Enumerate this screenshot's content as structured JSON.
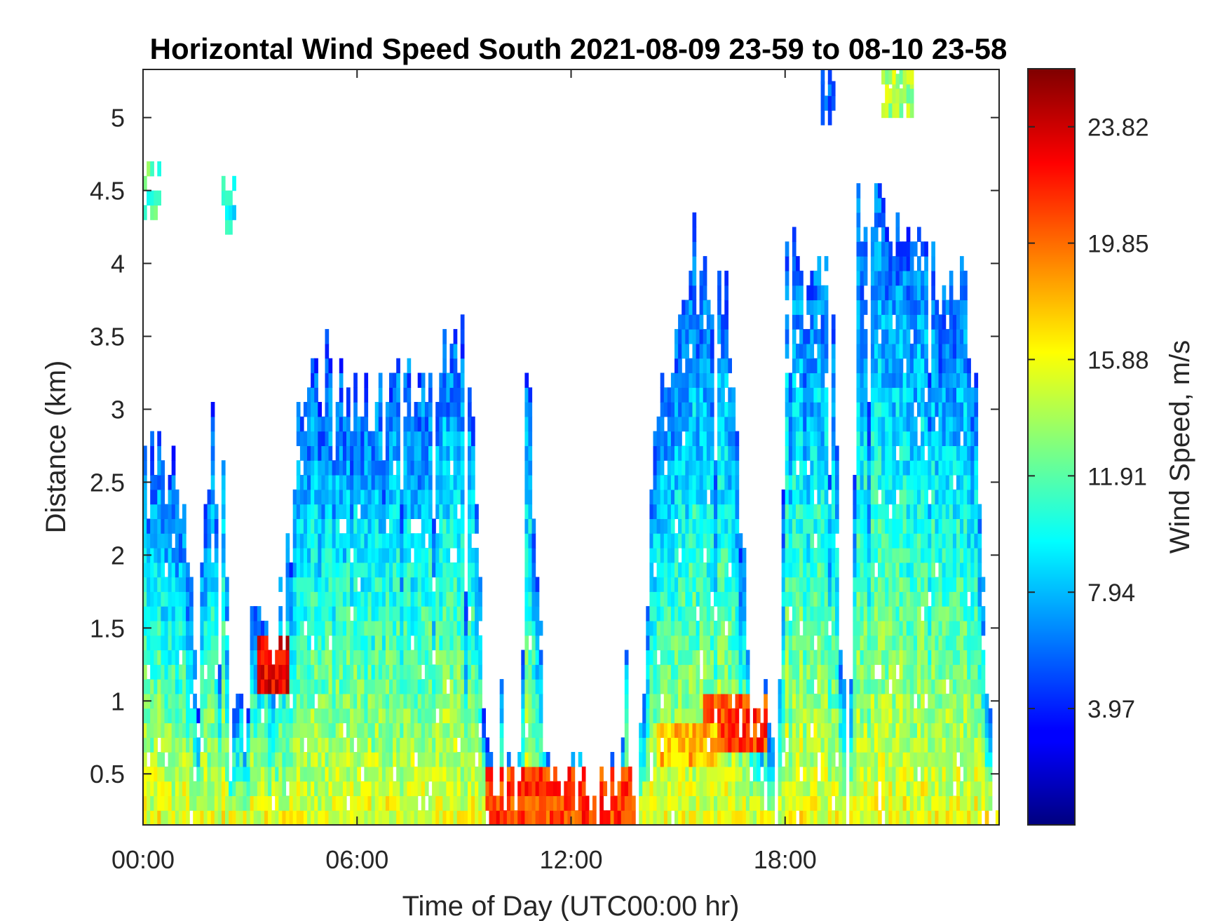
{
  "chart_data": {
    "type": "heatmap",
    "title": "Horizontal Wind Speed South 2021-08-09 23-59 to 08-10 23-58",
    "xlabel": "Time of Day (UTC00:00 hr)",
    "ylabel": "Distance (km)",
    "x_unit": "hours",
    "xlim": [
      0,
      24
    ],
    "ylim": [
      0.15,
      5.33
    ],
    "x_ticks": [
      {
        "value": 0,
        "label": "00:00"
      },
      {
        "value": 6,
        "label": "06:00"
      },
      {
        "value": 12,
        "label": "12:00"
      },
      {
        "value": 18,
        "label": "18:00"
      }
    ],
    "y_ticks": [
      {
        "value": 0.5,
        "label": "0.5"
      },
      {
        "value": 1,
        "label": "1"
      },
      {
        "value": 1.5,
        "label": "1.5"
      },
      {
        "value": 2,
        "label": "2"
      },
      {
        "value": 2.5,
        "label": "2.5"
      },
      {
        "value": 3,
        "label": "3"
      },
      {
        "value": 3.5,
        "label": "3.5"
      },
      {
        "value": 4,
        "label": "4"
      },
      {
        "value": 4.5,
        "label": "4.5"
      },
      {
        "value": 5,
        "label": "5"
      }
    ],
    "colorbar": {
      "label": "Wind Speed, m/s",
      "colormap": "jet",
      "clim": [
        0,
        25.8
      ],
      "ticks": [
        {
          "value": 3.97,
          "label": "3.97"
        },
        {
          "value": 7.94,
          "label": "7.94"
        },
        {
          "value": 11.91,
          "label": "11.91"
        },
        {
          "value": 15.88,
          "label": "15.88"
        },
        {
          "value": 19.85,
          "label": "19.85"
        },
        {
          "value": 23.82,
          "label": "23.82"
        }
      ]
    },
    "range_gate_km": 0.1,
    "time_step_hr": 0.1,
    "max_range_km": [
      [
        0,
        2.6
      ],
      [
        0.5,
        2.6
      ],
      [
        1.0,
        2.6
      ],
      [
        1.5,
        1.3
      ],
      [
        1.7,
        2.4
      ],
      [
        2.3,
        2.4
      ],
      [
        2.5,
        0.9
      ],
      [
        2.9,
        0.9
      ],
      [
        3.1,
        1.6
      ],
      [
        3.4,
        1.5
      ],
      [
        3.7,
        1.3
      ],
      [
        4.0,
        1.6
      ],
      [
        4.3,
        2.6
      ],
      [
        4.6,
        3.1
      ],
      [
        5.3,
        3.1
      ],
      [
        5.8,
        3.0
      ],
      [
        6.2,
        2.7
      ],
      [
        6.6,
        3.2
      ],
      [
        7.0,
        3.1
      ],
      [
        7.5,
        3.1
      ],
      [
        8.0,
        3.2
      ],
      [
        8.5,
        3.3
      ],
      [
        9.0,
        3.4
      ],
      [
        9.3,
        2.8
      ],
      [
        9.6,
        0.7
      ],
      [
        9.9,
        0.4
      ],
      [
        10.3,
        0.4
      ],
      [
        10.6,
        0.4
      ],
      [
        10.8,
        3.3
      ],
      [
        11.3,
        0.4
      ],
      [
        12.0,
        0.4
      ],
      [
        13.0,
        0.4
      ],
      [
        13.7,
        0.5
      ],
      [
        14.0,
        0.8
      ],
      [
        14.3,
        2.8
      ],
      [
        14.8,
        3.2
      ],
      [
        15.2,
        3.7
      ],
      [
        15.6,
        3.8
      ],
      [
        16.0,
        3.8
      ],
      [
        16.5,
        3.6
      ],
      [
        17.0,
        0.9
      ],
      [
        17.5,
        0.9
      ],
      [
        17.9,
        0.9
      ],
      [
        18.0,
        4.3
      ],
      [
        18.3,
        3.8
      ],
      [
        18.6,
        3.6
      ],
      [
        18.8,
        3.8
      ],
      [
        19.0,
        3.9
      ],
      [
        19.3,
        4.1
      ],
      [
        19.6,
        1.0
      ],
      [
        19.9,
        1.0
      ],
      [
        20.0,
        4.3
      ],
      [
        20.8,
        4.3
      ],
      [
        21.2,
        4.2
      ],
      [
        21.8,
        4.3
      ],
      [
        22.3,
        4.0
      ],
      [
        22.6,
        3.9
      ],
      [
        23.0,
        3.8
      ],
      [
        23.4,
        3.0
      ],
      [
        23.6,
        1.3
      ],
      [
        23.8,
        0.9
      ],
      [
        24.0,
        0.9
      ]
    ],
    "jet_regions": [
      {
        "t_start": 9.5,
        "t_end": 13.7,
        "alt_start": 0.15,
        "alt_end": 0.45,
        "speed": 21
      },
      {
        "t_start": 3.2,
        "t_end": 4.1,
        "alt_start": 1.0,
        "alt_end": 1.4,
        "speed": 23
      },
      {
        "t_start": 15.6,
        "t_end": 17.4,
        "alt_start": 0.6,
        "alt_end": 0.95,
        "speed": 21
      },
      {
        "t_start": 14.3,
        "t_end": 16.0,
        "alt_start": 0.5,
        "alt_end": 0.8,
        "speed": 18
      }
    ],
    "upper_patches": [
      {
        "t_start": 19.0,
        "t_end": 19.4,
        "alt_start": 4.95,
        "alt_end": 5.33,
        "speed": 5
      },
      {
        "t_start": 20.7,
        "t_end": 21.6,
        "alt_start": 5.0,
        "alt_end": 5.33,
        "speed": 14
      },
      {
        "t_start": 0.0,
        "t_end": 0.5,
        "alt_start": 4.3,
        "alt_end": 4.6,
        "speed": 12
      },
      {
        "t_start": 2.2,
        "t_end": 2.6,
        "alt_start": 4.2,
        "alt_end": 4.5,
        "speed": 10
      }
    ]
  }
}
